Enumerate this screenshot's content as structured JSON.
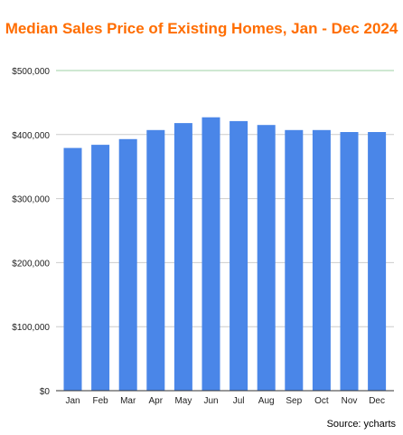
{
  "chart_data": {
    "type": "bar",
    "title": "Median Sales Price of Existing Homes, Jan - Dec 2024",
    "xlabel": "",
    "ylabel": "",
    "categories": [
      "Jan",
      "Feb",
      "Mar",
      "Apr",
      "May",
      "Jun",
      "Jul",
      "Aug",
      "Sep",
      "Oct",
      "Nov",
      "Dec"
    ],
    "values": [
      379100,
      384000,
      393000,
      407000,
      418000,
      427000,
      421000,
      415000,
      407000,
      407000,
      404000,
      404000
    ],
    "ylim": [
      0,
      500000
    ],
    "yticks": [
      0,
      100000,
      200000,
      300000,
      400000,
      500000
    ],
    "ytick_labels": [
      "$0",
      "$100,000",
      "$200,000",
      "$300,000",
      "$400,000",
      "$500,000"
    ],
    "grid": true,
    "legend": "none",
    "colors": {
      "bar": "#4a86e8",
      "title": "#ff6d01",
      "grid": "#cccccc",
      "axis": "#333333"
    }
  },
  "source": "Source: ycharts"
}
